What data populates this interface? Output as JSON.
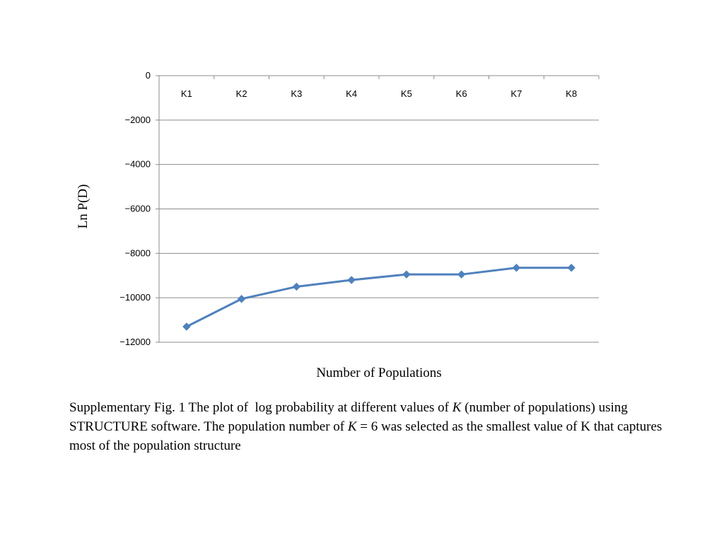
{
  "chart_data": {
    "type": "line",
    "categories": [
      "K1",
      "K2",
      "K3",
      "K4",
      "K5",
      "K6",
      "K7",
      "K8"
    ],
    "series": [
      {
        "values": [
          -11300,
          -10050,
          -9500,
          -9200,
          -8950,
          -8950,
          -8650,
          -8650
        ]
      }
    ],
    "ylabel": "Ln P(D)",
    "xlabel": "Number of Populations",
    "ylim": [
      -12000,
      0
    ],
    "yticks": [
      0,
      -2000,
      -4000,
      -6000,
      -8000,
      -10000,
      -12000
    ],
    "grid": true,
    "line_color": "#4F81BD",
    "x_tick_position": "top"
  },
  "caption": {
    "part1": "Supplementary Fig. 1 The plot of  log probability at different values of ",
    "k1": "K",
    "part2": " (number of populations) using STRUCTURE software. The population number of ",
    "k2": "K",
    "part3": " = 6 was selected as the smallest value of K that captures most of the population structure"
  }
}
